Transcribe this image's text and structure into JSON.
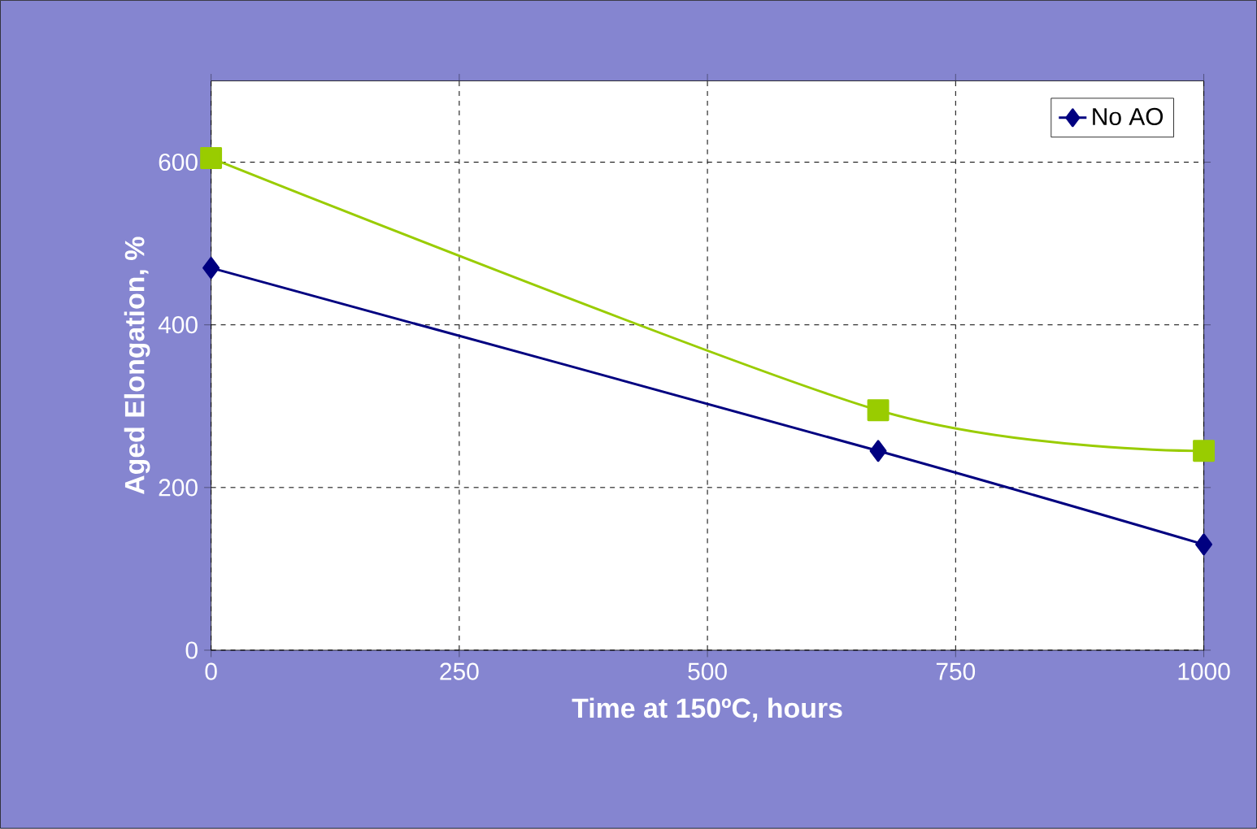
{
  "chart_data": {
    "type": "line",
    "xlabel": "Time at 150ºC, hours",
    "ylabel": "Aged Elongation, %",
    "x": [
      0,
      672,
      1000
    ],
    "series": [
      {
        "name": "No AO",
        "color": "#000080",
        "values": [
          470,
          245,
          130
        ],
        "marker": "diamond"
      },
      {
        "color": "#99cc00",
        "values": [
          605,
          295,
          245
        ],
        "marker": "square"
      }
    ],
    "xlim": [
      0,
      1000
    ],
    "xticks": [
      0,
      250,
      500,
      750,
      1000
    ],
    "ylim": [
      0,
      700
    ],
    "yticks": [
      0,
      200,
      400,
      600
    ],
    "grid": true,
    "legend": "top right"
  }
}
